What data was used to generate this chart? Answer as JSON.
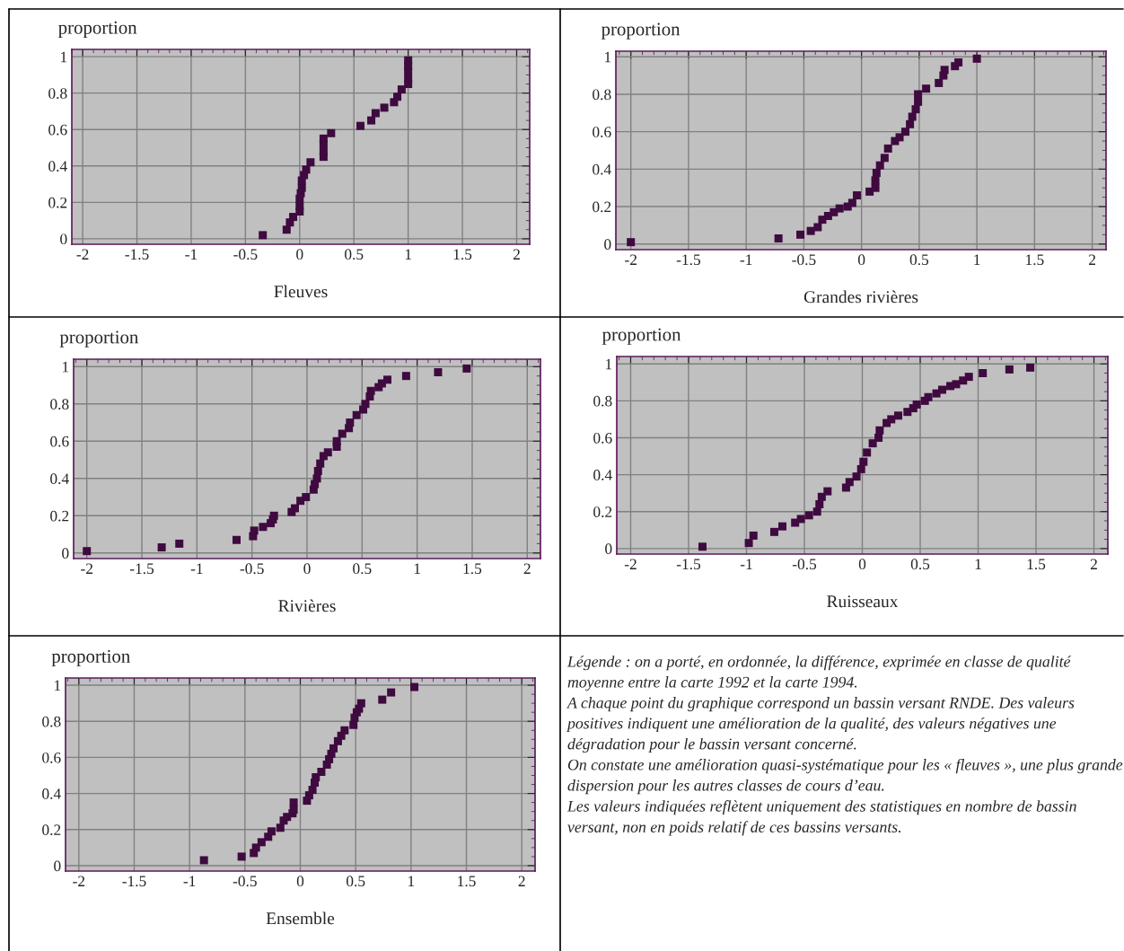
{
  "chart_data": [
    {
      "type": "scatter",
      "ylabel": "proportion",
      "xlabel": "Fleuves",
      "marker": "square",
      "grid": true,
      "xlim": [
        -2.1,
        2.12
      ],
      "ylim": [
        -0.03,
        1.04
      ],
      "xticks": [
        -2,
        -1.5,
        -1,
        -0.5,
        0,
        0.5,
        1,
        1.5,
        2
      ],
      "yticks": [
        0,
        0.2,
        0.4,
        0.6,
        0.8,
        1
      ],
      "series": [
        {
          "color": "#3f0a3f",
          "x": [
            -0.34,
            -0.12,
            -0.09,
            -0.06,
            0.0,
            0.0,
            0.0,
            0.01,
            0.02,
            0.02,
            0.04,
            0.06,
            0.1,
            0.22,
            0.22,
            0.22,
            0.22,
            0.29,
            0.56,
            0.66,
            0.7,
            0.78,
            0.87,
            0.9,
            0.94,
            1.0,
            1.0,
            1.0,
            1.0,
            1.0
          ],
          "values": [
            0.02,
            0.05,
            0.09,
            0.12,
            0.15,
            0.18,
            0.22,
            0.25,
            0.28,
            0.32,
            0.35,
            0.38,
            0.42,
            0.45,
            0.48,
            0.52,
            0.55,
            0.58,
            0.62,
            0.65,
            0.69,
            0.72,
            0.75,
            0.78,
            0.82,
            0.85,
            0.88,
            0.92,
            0.95,
            0.98
          ]
        }
      ]
    },
    {
      "type": "scatter",
      "ylabel": "proportion",
      "xlabel": "Grandes rivières",
      "marker": "square",
      "grid": true,
      "xlim": [
        -2.13,
        2.12
      ],
      "ylim": [
        -0.03,
        1.03
      ],
      "xticks": [
        -2,
        -1.5,
        -1,
        -0.5,
        0,
        0.5,
        1,
        1.5,
        2
      ],
      "yticks": [
        0,
        0.2,
        0.4,
        0.6,
        0.8,
        1
      ],
      "series": [
        {
          "color": "#3f0a3f",
          "x": [
            -2.0,
            -0.72,
            -0.53,
            -0.44,
            -0.38,
            -0.34,
            -0.29,
            -0.24,
            -0.19,
            -0.12,
            -0.08,
            -0.04,
            0.07,
            0.12,
            0.12,
            0.13,
            0.16,
            0.2,
            0.23,
            0.29,
            0.33,
            0.38,
            0.42,
            0.44,
            0.47,
            0.49,
            0.49,
            0.56,
            0.67,
            0.71,
            0.72,
            0.81,
            0.84,
            1.0
          ],
          "values": [
            0.01,
            0.03,
            0.05,
            0.07,
            0.09,
            0.13,
            0.15,
            0.17,
            0.19,
            0.2,
            0.22,
            0.26,
            0.28,
            0.3,
            0.34,
            0.38,
            0.42,
            0.46,
            0.51,
            0.55,
            0.57,
            0.6,
            0.64,
            0.68,
            0.72,
            0.76,
            0.8,
            0.83,
            0.86,
            0.9,
            0.93,
            0.95,
            0.97,
            0.99
          ]
        }
      ]
    },
    {
      "type": "scatter",
      "ylabel": "proportion",
      "xlabel": "Rivières",
      "marker": "square",
      "grid": true,
      "xlim": [
        -2.12,
        2.12
      ],
      "ylim": [
        -0.03,
        1.04
      ],
      "xticks": [
        -2,
        -1.5,
        -1,
        -0.5,
        0,
        0.5,
        1,
        1.5,
        2
      ],
      "yticks": [
        0,
        0.2,
        0.4,
        0.6,
        0.8,
        1
      ],
      "series": [
        {
          "color": "#3f0a3f",
          "x": [
            -2.0,
            -1.32,
            -1.16,
            -0.64,
            -0.49,
            -0.48,
            -0.4,
            -0.33,
            -0.31,
            -0.3,
            -0.14,
            -0.11,
            -0.06,
            -0.01,
            0.06,
            0.07,
            0.09,
            0.1,
            0.12,
            0.15,
            0.19,
            0.27,
            0.27,
            0.32,
            0.38,
            0.39,
            0.45,
            0.51,
            0.53,
            0.57,
            0.58,
            0.65,
            0.68,
            0.73,
            0.9,
            1.19,
            1.45
          ],
          "values": [
            0.01,
            0.03,
            0.05,
            0.07,
            0.09,
            0.12,
            0.14,
            0.16,
            0.18,
            0.2,
            0.22,
            0.24,
            0.28,
            0.3,
            0.34,
            0.37,
            0.4,
            0.44,
            0.48,
            0.52,
            0.54,
            0.57,
            0.6,
            0.64,
            0.67,
            0.7,
            0.74,
            0.77,
            0.8,
            0.84,
            0.87,
            0.89,
            0.91,
            0.93,
            0.95,
            0.97,
            0.99
          ]
        }
      ]
    },
    {
      "type": "scatter",
      "ylabel": "proportion",
      "xlabel": "Ruisseaux",
      "marker": "square",
      "grid": true,
      "xlim": [
        -2.12,
        2.12
      ],
      "ylim": [
        -0.03,
        1.04
      ],
      "xticks": [
        -2,
        -1.5,
        -1,
        -0.5,
        0,
        0.5,
        1,
        1.5,
        2
      ],
      "yticks": [
        0,
        0.2,
        0.4,
        0.6,
        0.8,
        1
      ],
      "series": [
        {
          "color": "#3f0a3f",
          "x": [
            -1.38,
            -0.98,
            -0.94,
            -0.76,
            -0.69,
            -0.58,
            -0.53,
            -0.46,
            -0.39,
            -0.37,
            -0.35,
            -0.3,
            -0.14,
            -0.11,
            -0.05,
            -0.01,
            0.01,
            0.04,
            0.09,
            0.14,
            0.15,
            0.21,
            0.25,
            0.31,
            0.39,
            0.44,
            0.47,
            0.54,
            0.57,
            0.64,
            0.69,
            0.76,
            0.81,
            0.87,
            0.92,
            1.04,
            1.27,
            1.45
          ],
          "values": [
            0.01,
            0.03,
            0.07,
            0.09,
            0.12,
            0.14,
            0.16,
            0.18,
            0.2,
            0.24,
            0.28,
            0.31,
            0.33,
            0.36,
            0.39,
            0.43,
            0.47,
            0.52,
            0.57,
            0.6,
            0.64,
            0.68,
            0.7,
            0.72,
            0.74,
            0.76,
            0.78,
            0.8,
            0.82,
            0.84,
            0.86,
            0.88,
            0.89,
            0.91,
            0.93,
            0.95,
            0.97,
            0.98
          ]
        }
      ]
    },
    {
      "type": "scatter",
      "ylabel": "proportion",
      "xlabel": "Ensemble",
      "marker": "square",
      "grid": true,
      "xlim": [
        -2.12,
        2.12
      ],
      "ylim": [
        -0.03,
        1.04
      ],
      "xticks": [
        -2,
        -1.5,
        -1,
        -0.5,
        0,
        0.5,
        1,
        1.5,
        2
      ],
      "yticks": [
        0,
        0.2,
        0.4,
        0.6,
        0.8,
        1
      ],
      "series": [
        {
          "color": "#3f0a3f",
          "x": [
            -0.87,
            -0.53,
            -0.42,
            -0.4,
            -0.35,
            -0.29,
            -0.26,
            -0.18,
            -0.15,
            -0.12,
            -0.07,
            -0.06,
            -0.06,
            0.06,
            0.08,
            0.11,
            0.13,
            0.14,
            0.19,
            0.24,
            0.26,
            0.28,
            0.3,
            0.34,
            0.37,
            0.4,
            0.48,
            0.49,
            0.51,
            0.53,
            0.55,
            0.74,
            0.82,
            1.03
          ],
          "values": [
            0.03,
            0.05,
            0.07,
            0.1,
            0.13,
            0.16,
            0.19,
            0.21,
            0.25,
            0.27,
            0.29,
            0.31,
            0.35,
            0.36,
            0.39,
            0.42,
            0.46,
            0.49,
            0.52,
            0.56,
            0.59,
            0.62,
            0.65,
            0.69,
            0.72,
            0.75,
            0.78,
            0.82,
            0.85,
            0.87,
            0.9,
            0.92,
            0.96,
            0.99
          ]
        }
      ]
    },
    {
      "type": "other",
      "annotations": [
        "Légende : on a porté, en ordonnée, la différence, exprimée en classe de qualité moyenne entre la carte 1992 et la carte 1994.",
        "A chaque point du graphique correspond un bassin versant RNDE. Des valeurs positives indiquent une amélioration de la qualité, des valeurs négatives une dégradation pour le bassin versant concerné.",
        "On constate une amélioration quasi-systématique pour les « fleuves », une plus grande dispersion pour les autres classes de cours d’eau.",
        "Les valeurs indiquées reflètent uniquement des statistiques en nombre de bassin versant, non en poids relatif de ces bassins versants."
      ]
    }
  ]
}
